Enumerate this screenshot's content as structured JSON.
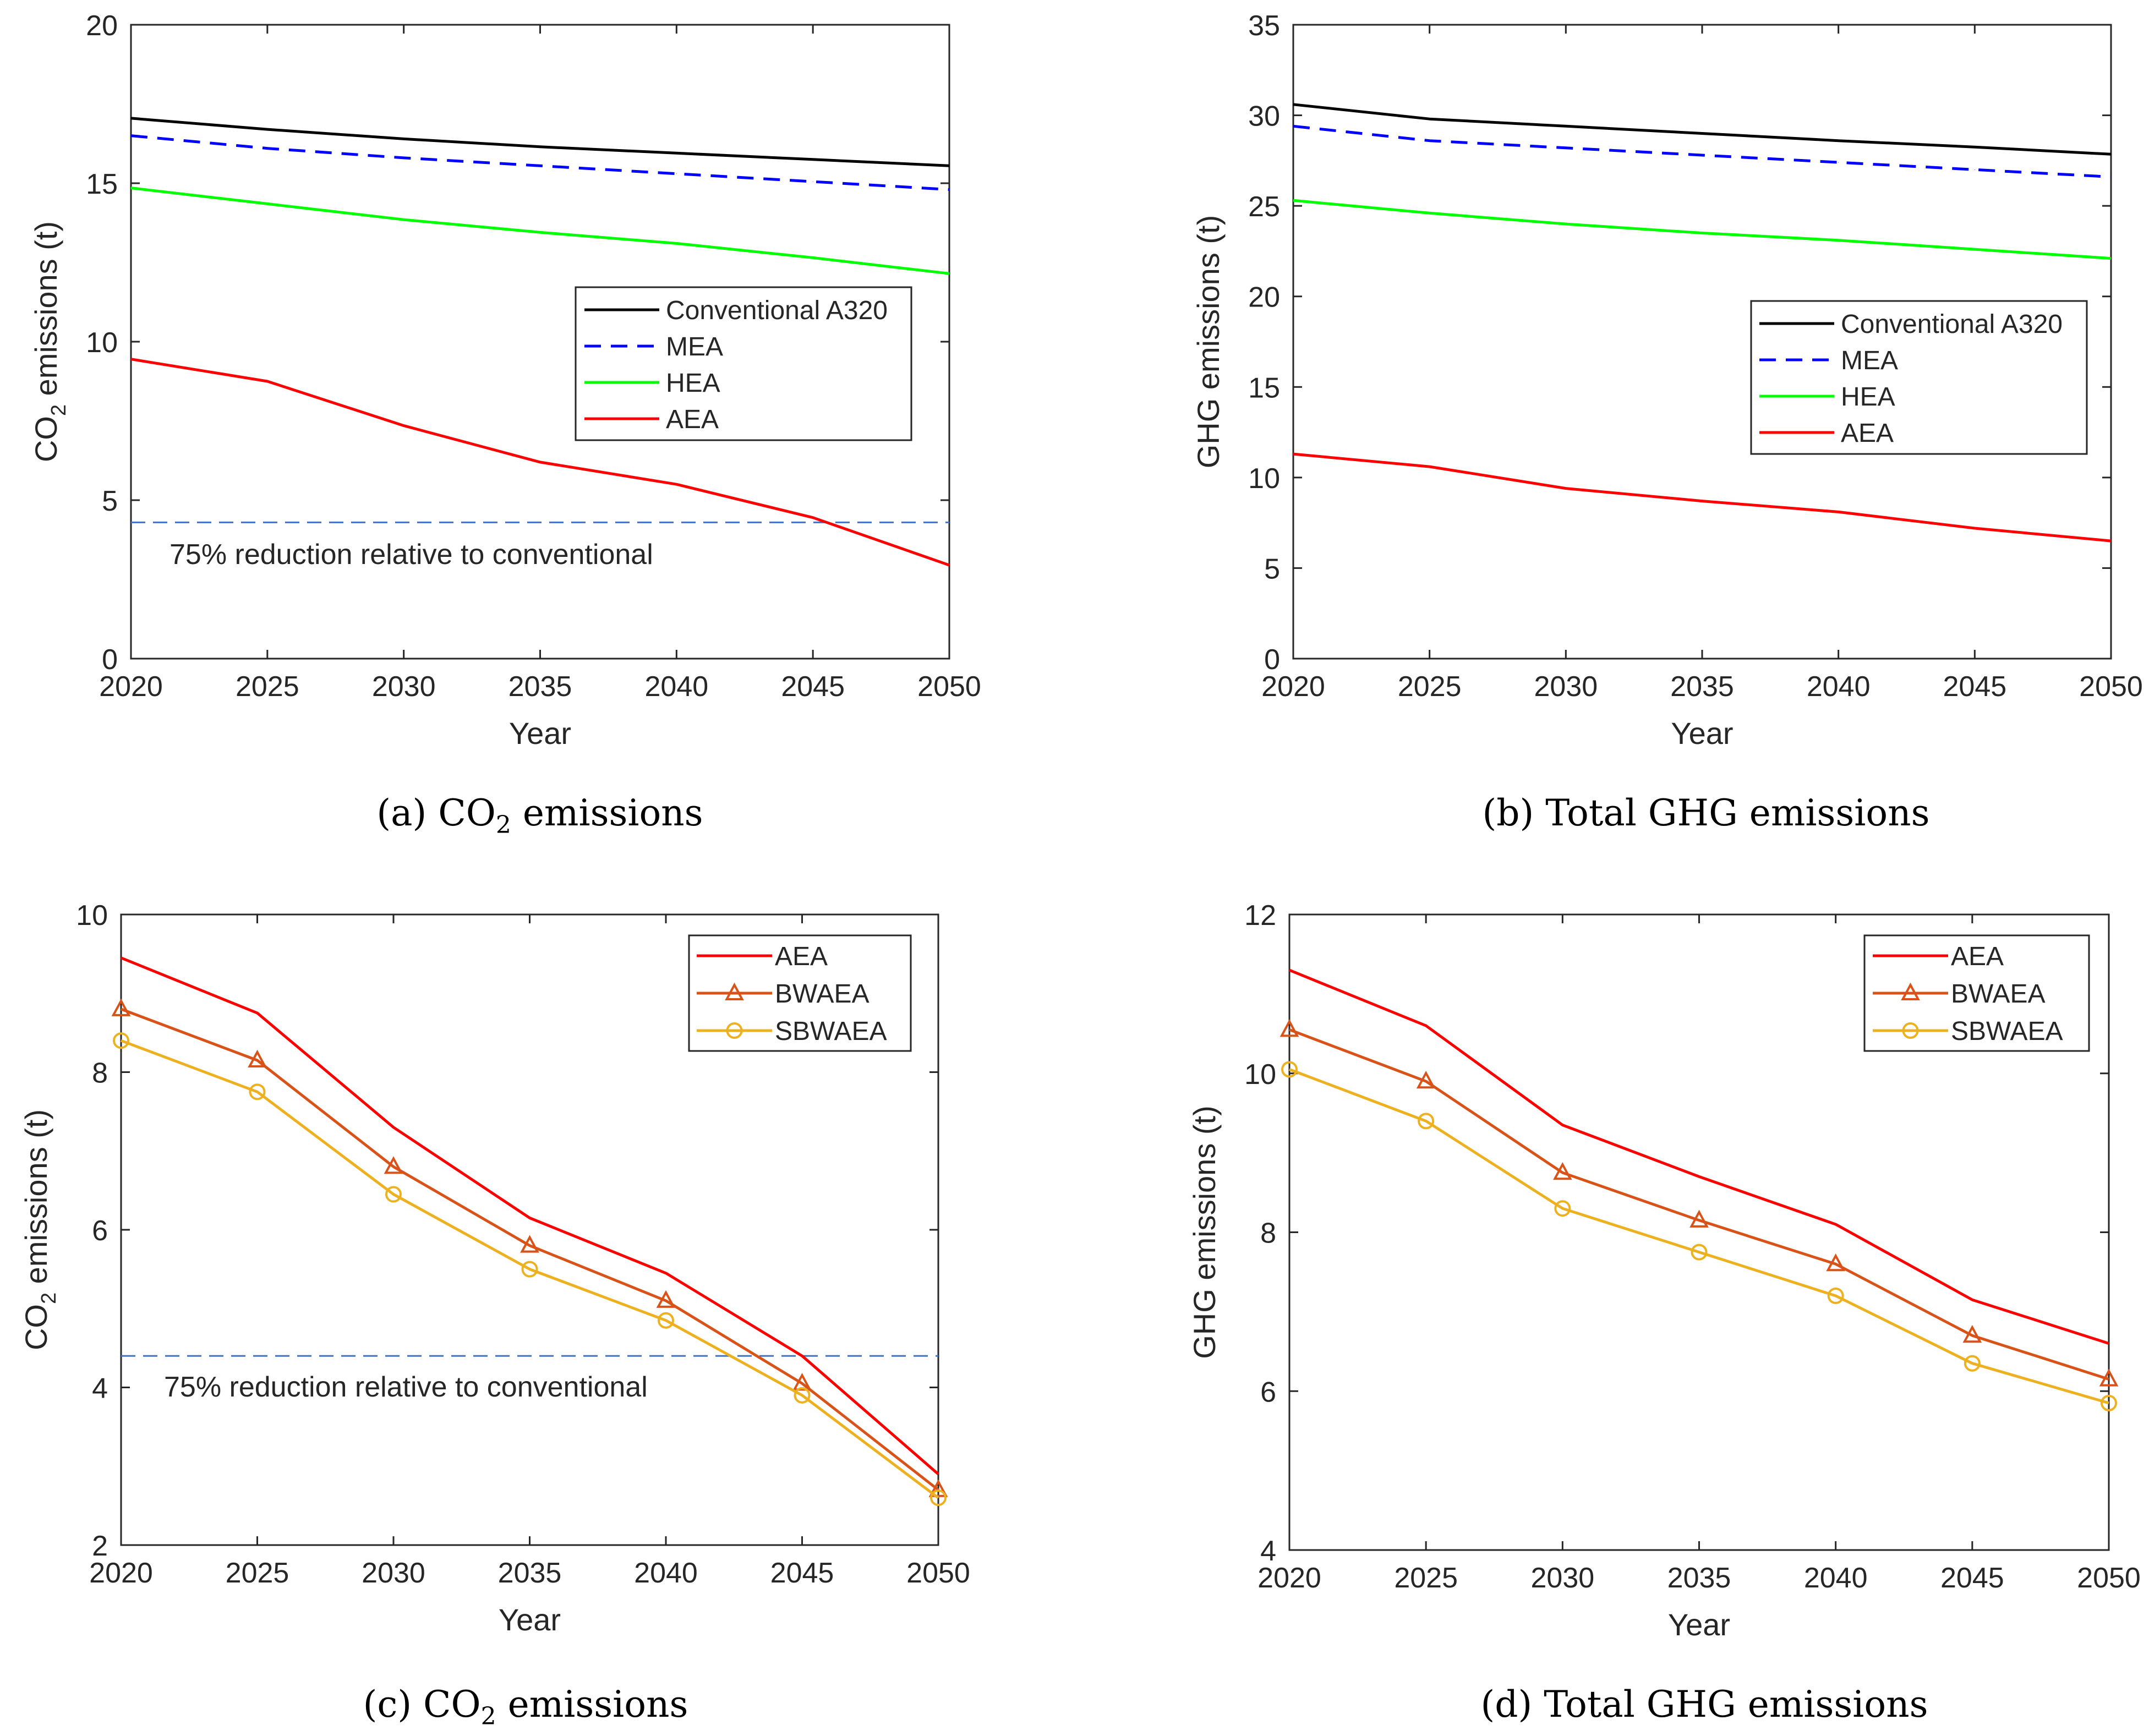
{
  "chart_data": [
    {
      "id": "a",
      "type": "line",
      "caption_prefix": "(a) CO",
      "caption_sub": "2",
      "caption_suffix": " emissions",
      "xlabel": "Year",
      "ylabel_main": "CO",
      "ylabel_sub": "2",
      "ylabel_rest": " emissions (t)",
      "xlim": [
        2020,
        2050
      ],
      "ylim": [
        0,
        20
      ],
      "x_ticks": [
        2020,
        2025,
        2030,
        2035,
        2040,
        2045,
        2050
      ],
      "y_ticks": [
        0,
        5,
        10,
        15,
        20
      ],
      "x": [
        2020,
        2025,
        2030,
        2035,
        2040,
        2045,
        2050
      ],
      "legend_position": "center-right",
      "series": [
        {
          "name": "Conventional A320",
          "color": "#000000",
          "dash": "solid",
          "marker": "none",
          "values": [
            17.05,
            16.7,
            16.4,
            16.15,
            15.95,
            15.75,
            15.55
          ]
        },
        {
          "name": "MEA",
          "color": "#0000ff",
          "dash": "dashed",
          "marker": "none",
          "values": [
            16.5,
            16.1,
            15.8,
            15.55,
            15.3,
            15.05,
            14.8
          ]
        },
        {
          "name": "HEA",
          "color": "#00ff00",
          "dash": "solid",
          "marker": "none",
          "values": [
            14.85,
            14.35,
            13.85,
            13.45,
            13.1,
            12.65,
            12.15
          ]
        },
        {
          "name": "AEA",
          "color": "#ff0000",
          "dash": "solid",
          "marker": "none",
          "values": [
            9.45,
            8.75,
            7.35,
            6.2,
            5.5,
            4.45,
            2.95
          ]
        }
      ],
      "reference": {
        "value": 4.3,
        "color": "#4472c4",
        "label": "75% reduction relative to conventional"
      }
    },
    {
      "id": "b",
      "type": "line",
      "caption": "(b) Total GHG emissions",
      "xlabel": "Year",
      "ylabel": "GHG emissions (t)",
      "xlim": [
        2020,
        2050
      ],
      "ylim": [
        0,
        35
      ],
      "x_ticks": [
        2020,
        2025,
        2030,
        2035,
        2040,
        2045,
        2050
      ],
      "y_ticks": [
        0,
        5,
        10,
        15,
        20,
        25,
        30,
        35
      ],
      "x": [
        2020,
        2025,
        2030,
        2035,
        2040,
        2045,
        2050
      ],
      "legend_position": "center-right",
      "series": [
        {
          "name": "Conventional A320",
          "color": "#000000",
          "dash": "solid",
          "marker": "none",
          "values": [
            30.6,
            29.8,
            29.4,
            29.0,
            28.6,
            28.25,
            27.85
          ]
        },
        {
          "name": "MEA",
          "color": "#0000ff",
          "dash": "dashed",
          "marker": "none",
          "values": [
            29.4,
            28.6,
            28.2,
            27.8,
            27.4,
            27.0,
            26.6
          ]
        },
        {
          "name": "HEA",
          "color": "#00ff00",
          "dash": "solid",
          "marker": "none",
          "values": [
            25.3,
            24.6,
            24.0,
            23.5,
            23.1,
            22.6,
            22.1
          ]
        },
        {
          "name": "AEA",
          "color": "#ff0000",
          "dash": "solid",
          "marker": "none",
          "values": [
            11.3,
            10.6,
            9.4,
            8.7,
            8.1,
            7.2,
            6.5
          ]
        }
      ]
    },
    {
      "id": "c",
      "type": "line",
      "caption_prefix": "(c) CO",
      "caption_sub": "2",
      "caption_suffix": " emissions",
      "xlabel": "Year",
      "ylabel_main": "CO",
      "ylabel_sub": "2",
      "ylabel_rest": " emissions (t)",
      "xlim": [
        2020,
        2050
      ],
      "ylim": [
        2,
        10
      ],
      "x_ticks": [
        2020,
        2025,
        2030,
        2035,
        2040,
        2045,
        2050
      ],
      "y_ticks": [
        2,
        4,
        6,
        8,
        10
      ],
      "x": [
        2020,
        2025,
        2030,
        2035,
        2040,
        2045,
        2050
      ],
      "legend_position": "top-right",
      "series": [
        {
          "name": "AEA",
          "color": "#ff0000",
          "dash": "solid",
          "marker": "none",
          "values": [
            9.45,
            8.75,
            7.3,
            6.15,
            5.45,
            4.4,
            2.9
          ]
        },
        {
          "name": "BWAEA",
          "color": "#d95319",
          "dash": "solid",
          "marker": "triangle",
          "values": [
            8.8,
            8.15,
            6.8,
            5.8,
            5.1,
            4.05,
            2.7
          ]
        },
        {
          "name": "SBWAEA",
          "color": "#edb120",
          "dash": "solid",
          "marker": "circle",
          "values": [
            8.4,
            7.75,
            6.45,
            5.5,
            4.85,
            3.9,
            2.6
          ]
        }
      ],
      "reference": {
        "value": 4.4,
        "color": "#4472c4",
        "label": "75% reduction relative to conventional"
      }
    },
    {
      "id": "d",
      "type": "line",
      "caption": "(d) Total GHG emissions",
      "xlabel": "Year",
      "ylabel": "GHG emissions (t)",
      "xlim": [
        2020,
        2050
      ],
      "ylim": [
        4,
        12
      ],
      "x_ticks": [
        2020,
        2025,
        2030,
        2035,
        2040,
        2045,
        2050
      ],
      "y_ticks": [
        4,
        6,
        8,
        10,
        12
      ],
      "x": [
        2020,
        2025,
        2030,
        2035,
        2040,
        2045,
        2050
      ],
      "legend_position": "top-right",
      "series": [
        {
          "name": "AEA",
          "color": "#ff0000",
          "dash": "solid",
          "marker": "none",
          "values": [
            11.3,
            10.6,
            9.35,
            8.7,
            8.1,
            7.15,
            6.6
          ]
        },
        {
          "name": "BWAEA",
          "color": "#d95319",
          "dash": "solid",
          "marker": "triangle",
          "values": [
            10.55,
            9.9,
            8.75,
            8.15,
            7.6,
            6.7,
            6.15
          ]
        },
        {
          "name": "SBWAEA",
          "color": "#edb120",
          "dash": "solid",
          "marker": "circle",
          "values": [
            10.05,
            9.4,
            8.3,
            7.75,
            7.2,
            6.35,
            5.85
          ]
        }
      ]
    }
  ]
}
